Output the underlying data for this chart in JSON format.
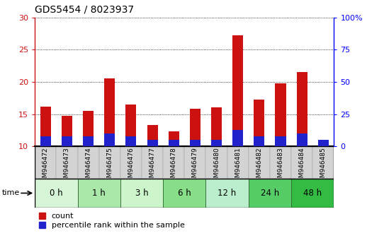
{
  "title": "GDS5454 / 8023937",
  "samples": [
    "GSM946472",
    "GSM946473",
    "GSM946474",
    "GSM946475",
    "GSM946476",
    "GSM946477",
    "GSM946478",
    "GSM946479",
    "GSM946480",
    "GSM946481",
    "GSM946482",
    "GSM946483",
    "GSM946484",
    "GSM946485"
  ],
  "count_values": [
    16.2,
    14.7,
    15.5,
    20.5,
    16.5,
    13.3,
    12.3,
    15.8,
    16.0,
    27.2,
    17.2,
    19.8,
    21.5,
    11.0
  ],
  "percentile_values": [
    11.5,
    11.5,
    11.5,
    12.0,
    11.5,
    11.0,
    11.0,
    11.0,
    11.0,
    12.5,
    11.5,
    11.5,
    12.0,
    11.0
  ],
  "bar_bottom": 10.0,
  "red_color": "#cc1111",
  "blue_color": "#2222cc",
  "ylim_left": [
    10,
    30
  ],
  "ylim_right": [
    0,
    100
  ],
  "yticks_left": [
    10,
    15,
    20,
    25,
    30
  ],
  "yticks_right": [
    0,
    25,
    50,
    75,
    100
  ],
  "time_groups": [
    {
      "label": "0 h",
      "start": 0,
      "end": 2,
      "color": "#d6f5d6"
    },
    {
      "label": "1 h",
      "start": 2,
      "end": 4,
      "color": "#aae8aa"
    },
    {
      "label": "3 h",
      "start": 4,
      "end": 6,
      "color": "#ccf5cc"
    },
    {
      "label": "6 h",
      "start": 6,
      "end": 8,
      "color": "#88dd88"
    },
    {
      "label": "12 h",
      "start": 8,
      "end": 10,
      "color": "#bbeecc"
    },
    {
      "label": "24 h",
      "start": 10,
      "end": 12,
      "color": "#55cc66"
    },
    {
      "label": "48 h",
      "start": 12,
      "end": 14,
      "color": "#33bb44"
    }
  ],
  "time_label": "time",
  "legend_count": "count",
  "legend_percentile": "percentile rank within the sample",
  "title_fontsize": 10,
  "tick_fontsize": 6.5,
  "bar_width": 0.5,
  "sample_bg_color": "#d3d3d3",
  "sample_edge_color": "#999999"
}
